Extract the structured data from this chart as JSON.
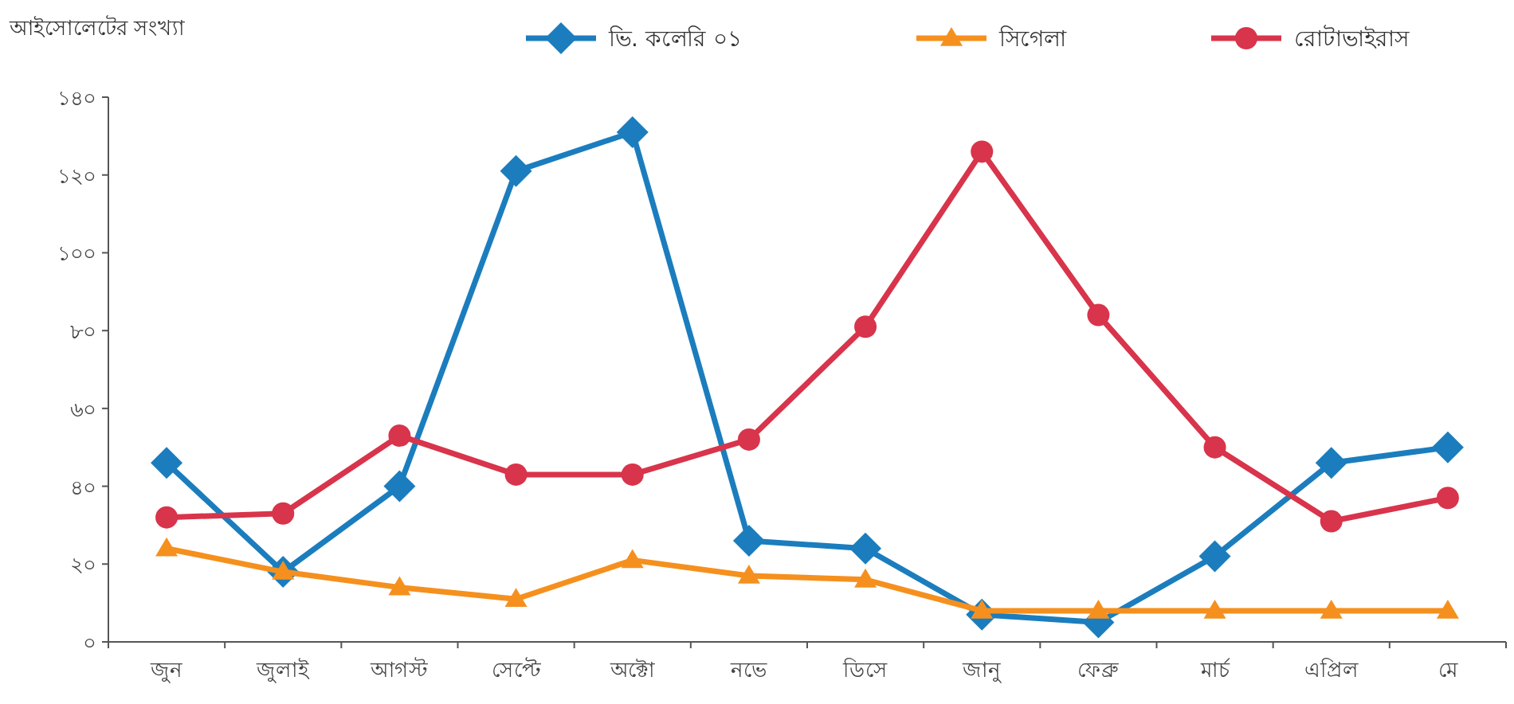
{
  "chart_data": {
    "type": "line",
    "ylabel": "আইসোলেটের সংখ্যা",
    "categories": [
      "জুন",
      "জুলাই",
      "আগস্ট",
      "সেপ্টে",
      "অক্টো",
      "নভে",
      "ডিসে",
      "জানু",
      "ফেব্রু",
      "মার্চ",
      "এপ্রিল",
      "মে"
    ],
    "ylim": [
      0,
      140
    ],
    "yticks": [
      {
        "value": 0,
        "label": "০"
      },
      {
        "value": 20,
        "label": "২০"
      },
      {
        "value": 40,
        "label": "৪০"
      },
      {
        "value": 60,
        "label": "৬০"
      },
      {
        "value": 80,
        "label": "৮০"
      },
      {
        "value": 100,
        "label": "১০০"
      },
      {
        "value": 120,
        "label": "১২০"
      },
      {
        "value": 140,
        "label": "১৪০"
      }
    ],
    "grid": false,
    "legend": "top",
    "line_style": "solid",
    "series": [
      {
        "name": "ভি. কলেরি ০১",
        "color": "#1b7dbd",
        "marker": "diamond",
        "values": [
          46,
          18,
          40,
          121,
          131,
          26,
          24,
          7,
          5,
          22,
          46,
          50
        ]
      },
      {
        "name": "সিগেলা",
        "color": "#f5901e",
        "marker": "triangle",
        "values": [
          24,
          18,
          14,
          11,
          21,
          17,
          16,
          8,
          8,
          8,
          8,
          8
        ]
      },
      {
        "name": "রোটাভাইরাস",
        "color": "#d8344b",
        "marker": "circle",
        "values": [
          32,
          33,
          53,
          43,
          43,
          52,
          81,
          126,
          84,
          50,
          31,
          37
        ]
      }
    ]
  }
}
